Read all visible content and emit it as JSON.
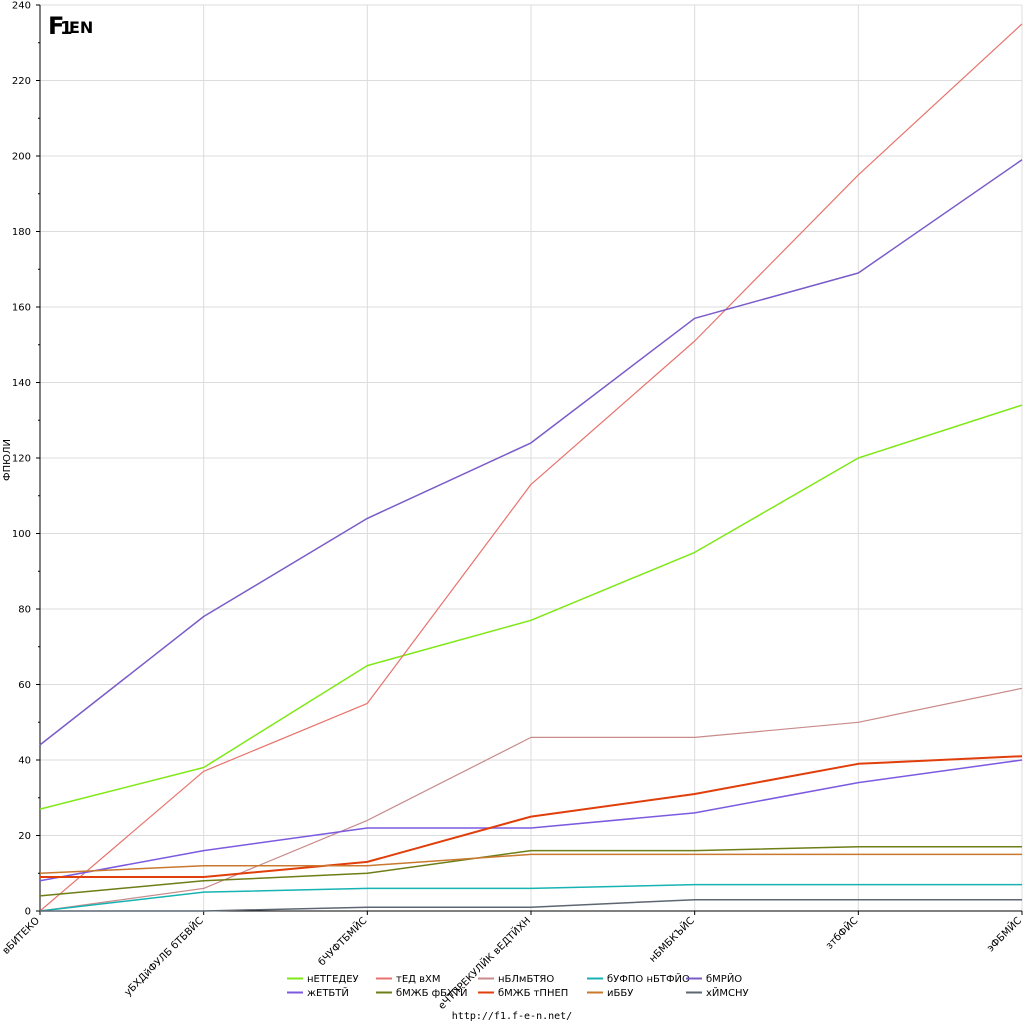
{
  "source_url": "http://f1.f-e-n.net/",
  "logo": {
    "text": "F1FEN",
    "colors": {
      "dark": "#3a3a3a",
      "accent": "#f28c1e"
    }
  },
  "chart_data": {
    "type": "line",
    "ylabel": "ФПЮЛИ",
    "xlabel": "",
    "ylim": [
      0,
      240
    ],
    "y_ticks": [
      0,
      20,
      40,
      60,
      80,
      100,
      120,
      140,
      160,
      180,
      200,
      220,
      240
    ],
    "grid": true,
    "legend_position": "bottom-center",
    "categories": [
      "вБИТЕКО",
      "уБХДйФУЛБ бТБВЙС",
      "бЧУФТБМЙС",
      "еЧТПРЕКУЛЙК вЕДТЙХН",
      "нБМБКЪЙС",
      "зтбФЙС",
      "эФБМЙС"
    ],
    "series": [
      {
        "name": "нЕТГЕДЕУ",
        "color": "#7fe817",
        "width": 1.5,
        "values": [
          27,
          38,
          65,
          77,
          95,
          120,
          134
        ]
      },
      {
        "name": "тЕД вХМ",
        "color": "#e8736d",
        "width": 1.2,
        "values": [
          0,
          37,
          55,
          113,
          151,
          195,
          235
        ]
      },
      {
        "name": "нБЛмБТЯО",
        "color": "#c98a8a",
        "width": 1.2,
        "values": [
          0,
          6,
          24,
          46,
          46,
          50,
          59
        ]
      },
      {
        "name": "бУФПО нБТФЙО",
        "color": "#17b3b3",
        "width": 1.5,
        "values": [
          0,
          5,
          6,
          6,
          7,
          7,
          7
        ]
      },
      {
        "name": "бМРЙО",
        "color": "#7a5cc9",
        "width": 1.5,
        "values": [
          44,
          78,
          104,
          124,
          157,
          169,
          199
        ]
      },
      {
        "name": "жЕТБТЙ",
        "color": "#7b5ae0",
        "width": 1.5,
        "values": [
          8,
          16,
          22,
          22,
          26,
          34,
          40
        ]
      },
      {
        "name": "бМЖБ фБХТЙ",
        "color": "#6e7d16",
        "width": 1.5,
        "values": [
          4,
          8,
          10,
          16,
          16,
          17,
          17
        ]
      },
      {
        "name": "бМЖБ тПНЕП",
        "color": "#e03e0a",
        "width": 2,
        "values": [
          9,
          9,
          13,
          25,
          31,
          39,
          41
        ]
      },
      {
        "name": "иББУ",
        "color": "#c9782e",
        "width": 1.5,
        "values": [
          10,
          12,
          12,
          15,
          15,
          15,
          15
        ]
      },
      {
        "name": "хЙМСНУ",
        "color": "#5e6673",
        "width": 1.5,
        "values": [
          0,
          0,
          1,
          1,
          3,
          3,
          3
        ]
      }
    ]
  }
}
